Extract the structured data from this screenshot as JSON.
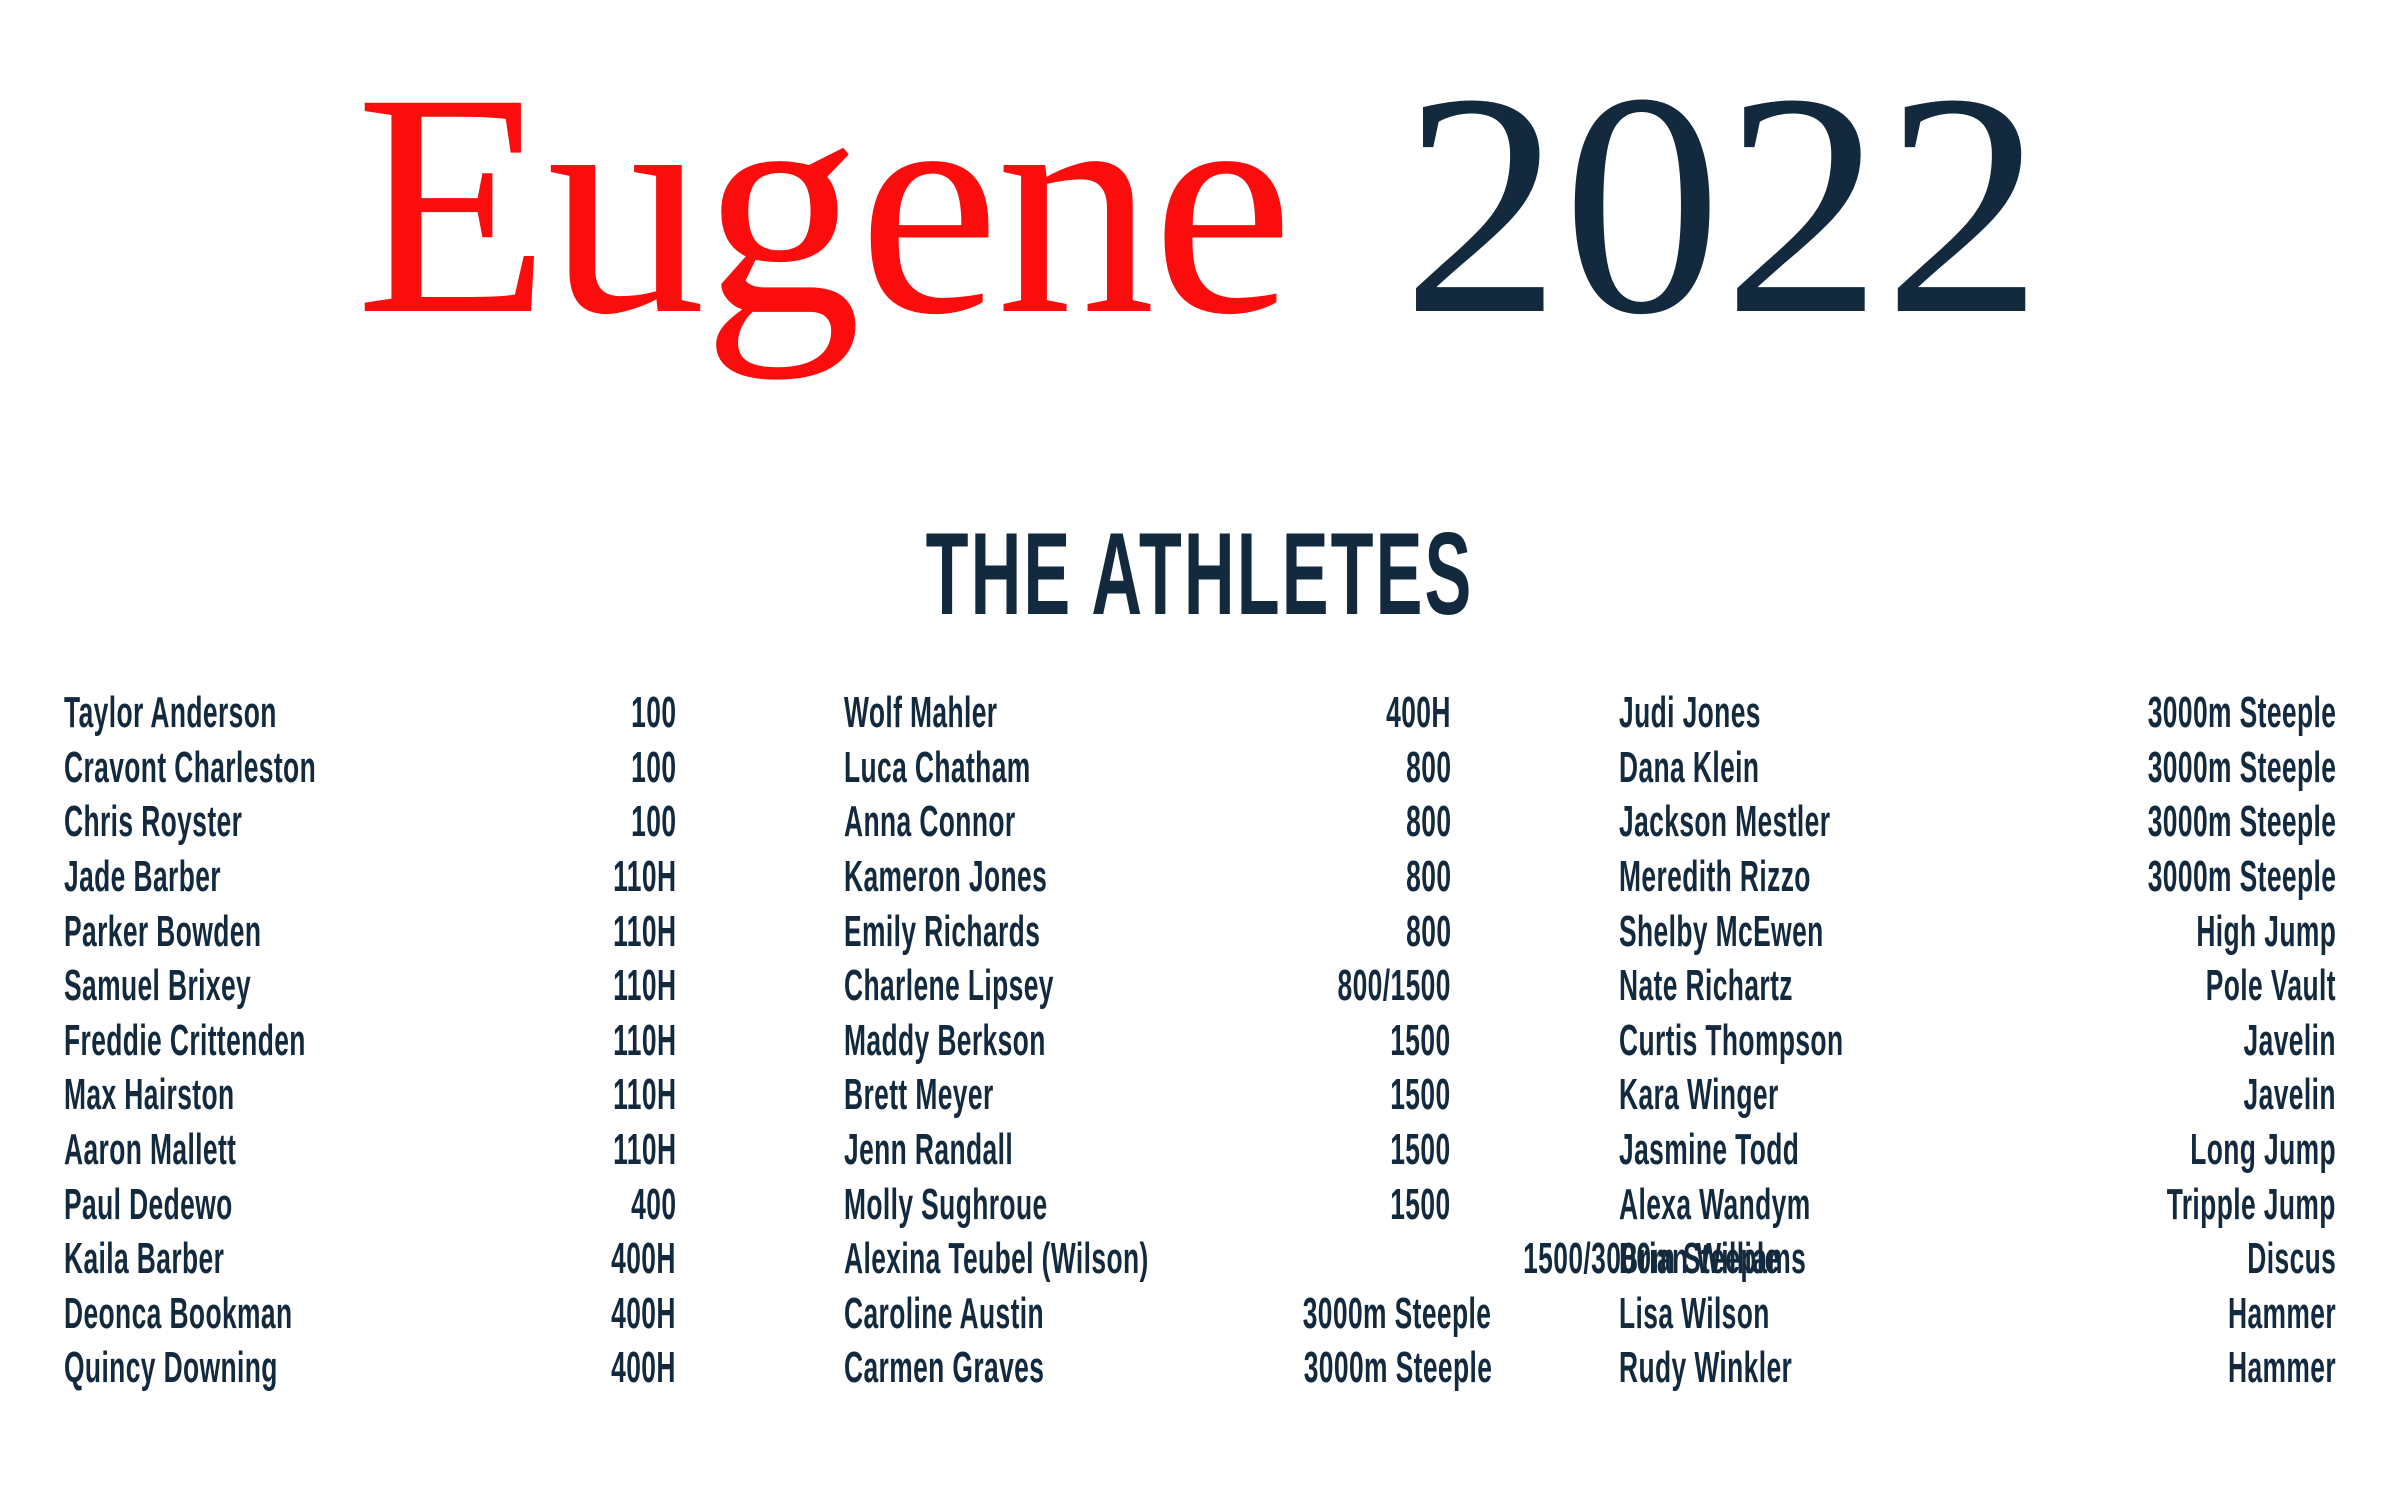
{
  "title": {
    "city": "Eugene",
    "year": "2022"
  },
  "section": {
    "heading": "THE ATHLETES"
  },
  "colors": {
    "accent_red": "#FB0D0D",
    "navy": "#132A3E",
    "background": "#FFFFFF"
  },
  "athletes": {
    "column1": [
      {
        "name": "Taylor Anderson",
        "event": "100"
      },
      {
        "name": "Cravont Charleston",
        "event": "100"
      },
      {
        "name": "Chris Royster",
        "event": "100"
      },
      {
        "name": "Jade Barber",
        "event": "110H"
      },
      {
        "name": "Parker Bowden",
        "event": "110H"
      },
      {
        "name": "Samuel Brixey",
        "event": "110H"
      },
      {
        "name": "Freddie Crittenden",
        "event": "110H"
      },
      {
        "name": "Max Hairston",
        "event": "110H"
      },
      {
        "name": "Aaron Mallett",
        "event": "110H"
      },
      {
        "name": "Paul Dedewo",
        "event": "400"
      },
      {
        "name": "Kaila Barber",
        "event": "400H"
      },
      {
        "name": "Deonca Bookman",
        "event": "400H"
      },
      {
        "name": "Quincy Downing",
        "event": "400H"
      }
    ],
    "column2": [
      {
        "name": "Wolf Mahler",
        "event": "400H"
      },
      {
        "name": "Luca Chatham",
        "event": "800"
      },
      {
        "name": "Anna Connor",
        "event": "800"
      },
      {
        "name": "Kameron Jones",
        "event": "800"
      },
      {
        "name": "Emily Richards",
        "event": "800"
      },
      {
        "name": "Charlene Lipsey",
        "event": "800/1500"
      },
      {
        "name": "Maddy Berkson",
        "event": "1500"
      },
      {
        "name": "Brett Meyer",
        "event": "1500"
      },
      {
        "name": "Jenn Randall",
        "event": "1500"
      },
      {
        "name": "Molly Sughroue",
        "event": "1500"
      },
      {
        "name": "Alexina Teubel (Wilson)",
        "event": "1500/3000m Steeple"
      },
      {
        "name": "Caroline Austin",
        "event": "3000m Steeple"
      },
      {
        "name": "Carmen Graves",
        "event": "3000m Steeple"
      }
    ],
    "column3": [
      {
        "name": "Judi Jones",
        "event": "3000m Steeple"
      },
      {
        "name": "Dana Klein",
        "event": "3000m Steeple"
      },
      {
        "name": "Jackson Mestler",
        "event": "3000m Steeple"
      },
      {
        "name": "Meredith Rizzo",
        "event": "3000m Steeple"
      },
      {
        "name": "Shelby McEwen",
        "event": "High Jump"
      },
      {
        "name": "Nate Richartz",
        "event": "Pole Vault"
      },
      {
        "name": "Curtis Thompson",
        "event": "Javelin"
      },
      {
        "name": "Kara Winger",
        "event": "Javelin"
      },
      {
        "name": "Jasmine Todd",
        "event": "Long Jump"
      },
      {
        "name": "Alexa Wandym",
        "event": "Tripple Jump"
      },
      {
        "name": "Brian Williams",
        "event": "Discus"
      },
      {
        "name": "Lisa Wilson",
        "event": "Hammer"
      },
      {
        "name": "Rudy Winkler",
        "event": "Hammer"
      }
    ]
  }
}
